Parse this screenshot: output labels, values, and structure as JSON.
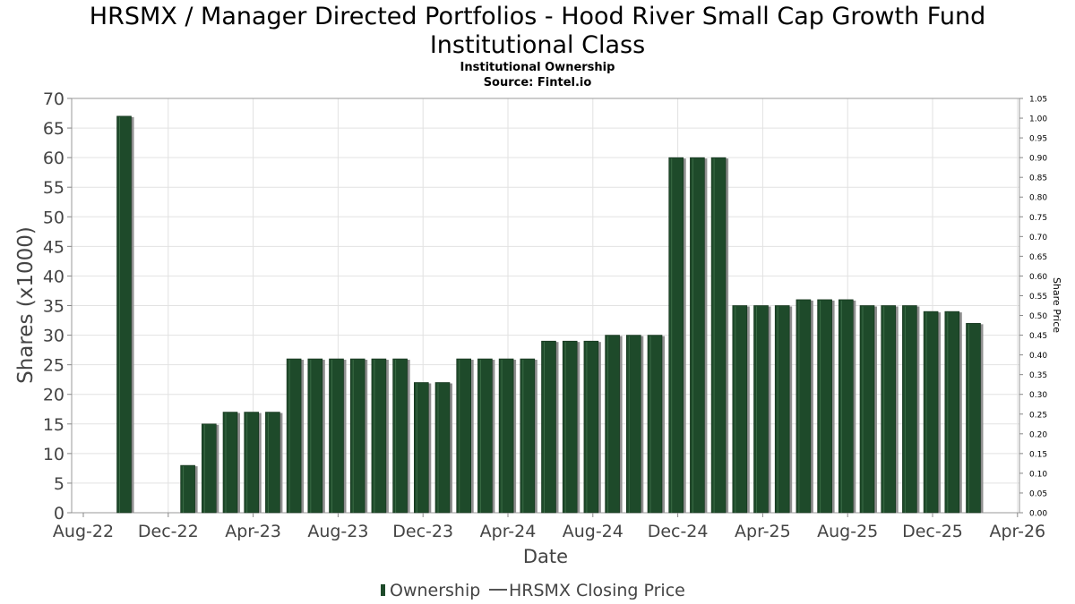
{
  "chart_data": {
    "type": "bar",
    "title_line1": "HRSMX / Manager Directed Portfolios - Hood River Small Cap Growth Fund",
    "title_line2": "Institutional Class",
    "subtitle": "Institutional Ownership",
    "source": "Source: Fintel.io",
    "xlabel": "Date",
    "ylabel": "Shares (x1000)",
    "y2label": "Share Price",
    "ylim": [
      0,
      70
    ],
    "y2lim": [
      0,
      1.05
    ],
    "yticks": [
      "0",
      "5",
      "10",
      "15",
      "20",
      "25",
      "30",
      "35",
      "40",
      "45",
      "50",
      "55",
      "60",
      "65",
      "70"
    ],
    "y2ticks": [
      "0.00",
      "0.05",
      "0.10",
      "0.15",
      "0.20",
      "0.25",
      "0.30",
      "0.35",
      "0.40",
      "0.45",
      "0.50",
      "0.55",
      "0.60",
      "0.65",
      "0.70",
      "0.75",
      "0.80",
      "0.85",
      "0.90",
      "0.95",
      "1.00",
      "1.05"
    ],
    "xticks": [
      "Aug-22",
      "Dec-22",
      "Apr-23",
      "Aug-23",
      "Dec-23",
      "Apr-24",
      "Aug-24",
      "Dec-24",
      "Apr-25",
      "Aug-25",
      "Dec-25",
      "Apr-26"
    ],
    "series": [
      {
        "name": "Ownership",
        "color": "#1e4a2a",
        "values": [
          67,
          0,
          0,
          8,
          15,
          17,
          17,
          17,
          26,
          26,
          26,
          26,
          26,
          26,
          22,
          22,
          26,
          26,
          26,
          26,
          29,
          29,
          29,
          30,
          30,
          30,
          60,
          60,
          60,
          35,
          35,
          35,
          36,
          36,
          36,
          35,
          35,
          35,
          34,
          34,
          32
        ]
      },
      {
        "name": "HRSMX Closing Price",
        "color": "#555555",
        "values": []
      }
    ],
    "legend": {
      "position": "bottom",
      "ownership_label": "Ownership",
      "price_label": "HRSMX Closing Price"
    }
  }
}
